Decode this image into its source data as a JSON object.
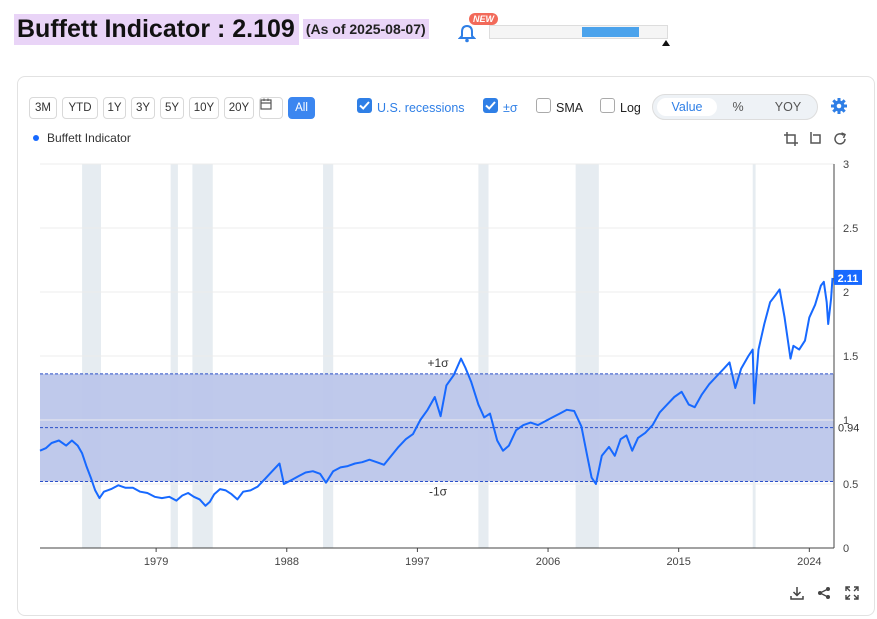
{
  "header": {
    "title": "Buffett Indicator : 2.109",
    "as_of": "(As of 2025-08-07)",
    "new_badge": "NEW",
    "progress_fraction": 0.32,
    "progress_offset_fraction": 0.52
  },
  "toolbar": {
    "ranges": [
      "3M",
      "YTD",
      "1Y",
      "3Y",
      "5Y",
      "10Y",
      "20Y"
    ],
    "all_label": "All",
    "recessions_label": "U.S. recessions",
    "sigma_label": "±σ",
    "sma_label": "SMA",
    "log_label": "Log",
    "view_options": [
      "Value",
      "%",
      "YOY"
    ]
  },
  "legend": {
    "label": "Buffett Indicator"
  },
  "colors": {
    "line": "#1769ff",
    "band": "#bcc6ea",
    "recession": "#e6ecf1",
    "accent": "#3b86f0"
  },
  "chart_data": {
    "type": "line",
    "title": "Buffett Indicator",
    "series": [
      {
        "name": "Buffett Indicator",
        "points": [
          [
            1971.0,
            0.76
          ],
          [
            1971.4,
            0.78
          ],
          [
            1971.8,
            0.82
          ],
          [
            1972.3,
            0.84
          ],
          [
            1972.8,
            0.8
          ],
          [
            1973.2,
            0.84
          ],
          [
            1973.6,
            0.8
          ],
          [
            1973.9,
            0.74
          ],
          [
            1974.2,
            0.64
          ],
          [
            1974.5,
            0.55
          ],
          [
            1974.8,
            0.45
          ],
          [
            1975.1,
            0.39
          ],
          [
            1975.4,
            0.44
          ],
          [
            1975.9,
            0.46
          ],
          [
            1976.4,
            0.49
          ],
          [
            1976.9,
            0.47
          ],
          [
            1977.4,
            0.47
          ],
          [
            1977.9,
            0.44
          ],
          [
            1978.4,
            0.43
          ],
          [
            1978.9,
            0.4
          ],
          [
            1979.4,
            0.39
          ],
          [
            1979.9,
            0.4
          ],
          [
            1980.4,
            0.37
          ],
          [
            1980.8,
            0.41
          ],
          [
            1981.2,
            0.43
          ],
          [
            1981.6,
            0.4
          ],
          [
            1982.0,
            0.38
          ],
          [
            1982.4,
            0.33
          ],
          [
            1982.7,
            0.36
          ],
          [
            1983.0,
            0.42
          ],
          [
            1983.4,
            0.46
          ],
          [
            1983.8,
            0.45
          ],
          [
            1984.2,
            0.42
          ],
          [
            1984.6,
            0.38
          ],
          [
            1985.0,
            0.44
          ],
          [
            1985.5,
            0.45
          ],
          [
            1986.0,
            0.48
          ],
          [
            1986.5,
            0.54
          ],
          [
            1987.0,
            0.6
          ],
          [
            1987.5,
            0.66
          ],
          [
            1987.8,
            0.5
          ],
          [
            1988.3,
            0.53
          ],
          [
            1988.8,
            0.56
          ],
          [
            1989.3,
            0.59
          ],
          [
            1989.8,
            0.6
          ],
          [
            1990.3,
            0.58
          ],
          [
            1990.7,
            0.51
          ],
          [
            1991.2,
            0.6
          ],
          [
            1991.7,
            0.63
          ],
          [
            1992.2,
            0.64
          ],
          [
            1992.7,
            0.66
          ],
          [
            1993.2,
            0.67
          ],
          [
            1993.7,
            0.69
          ],
          [
            1994.2,
            0.67
          ],
          [
            1994.7,
            0.65
          ],
          [
            1995.2,
            0.72
          ],
          [
            1995.7,
            0.79
          ],
          [
            1996.2,
            0.85
          ],
          [
            1996.7,
            0.89
          ],
          [
            1997.2,
            1.0
          ],
          [
            1997.7,
            1.08
          ],
          [
            1998.2,
            1.18
          ],
          [
            1998.6,
            1.03
          ],
          [
            1999.0,
            1.27
          ],
          [
            1999.5,
            1.35
          ],
          [
            2000.0,
            1.48
          ],
          [
            2000.3,
            1.41
          ],
          [
            2000.7,
            1.3
          ],
          [
            2001.2,
            1.12
          ],
          [
            2001.6,
            1.02
          ],
          [
            2002.0,
            1.05
          ],
          [
            2002.5,
            0.84
          ],
          [
            2002.9,
            0.76
          ],
          [
            2003.3,
            0.8
          ],
          [
            2003.8,
            0.92
          ],
          [
            2004.3,
            0.96
          ],
          [
            2004.8,
            0.98
          ],
          [
            2005.3,
            0.96
          ],
          [
            2005.8,
            0.99
          ],
          [
            2006.3,
            1.02
          ],
          [
            2006.8,
            1.05
          ],
          [
            2007.3,
            1.08
          ],
          [
            2007.8,
            1.07
          ],
          [
            2008.3,
            0.95
          ],
          [
            2008.7,
            0.72
          ],
          [
            2009.0,
            0.55
          ],
          [
            2009.3,
            0.5
          ],
          [
            2009.7,
            0.72
          ],
          [
            2010.2,
            0.79
          ],
          [
            2010.6,
            0.72
          ],
          [
            2011.0,
            0.85
          ],
          [
            2011.4,
            0.88
          ],
          [
            2011.8,
            0.76
          ],
          [
            2012.2,
            0.86
          ],
          [
            2012.7,
            0.9
          ],
          [
            2013.2,
            0.96
          ],
          [
            2013.7,
            1.06
          ],
          [
            2014.2,
            1.12
          ],
          [
            2014.7,
            1.18
          ],
          [
            2015.2,
            1.22
          ],
          [
            2015.7,
            1.12
          ],
          [
            2016.1,
            1.1
          ],
          [
            2016.6,
            1.2
          ],
          [
            2017.1,
            1.28
          ],
          [
            2017.6,
            1.34
          ],
          [
            2018.1,
            1.4
          ],
          [
            2018.5,
            1.45
          ],
          [
            2018.9,
            1.25
          ],
          [
            2019.3,
            1.4
          ],
          [
            2019.8,
            1.5
          ],
          [
            2020.1,
            1.55
          ],
          [
            2020.2,
            1.13
          ],
          [
            2020.5,
            1.55
          ],
          [
            2020.9,
            1.75
          ],
          [
            2021.3,
            1.92
          ],
          [
            2021.7,
            1.98
          ],
          [
            2021.95,
            2.02
          ],
          [
            2022.3,
            1.8
          ],
          [
            2022.7,
            1.48
          ],
          [
            2022.9,
            1.58
          ],
          [
            2023.3,
            1.55
          ],
          [
            2023.7,
            1.62
          ],
          [
            2024.0,
            1.8
          ],
          [
            2024.4,
            1.9
          ],
          [
            2024.8,
            2.05
          ],
          [
            2025.0,
            2.08
          ],
          [
            2025.2,
            1.92
          ],
          [
            2025.3,
            1.75
          ],
          [
            2025.5,
            1.95
          ],
          [
            2025.6,
            2.11
          ]
        ]
      }
    ],
    "recessions": [
      [
        1973.9,
        1975.2
      ],
      [
        1980.0,
        1980.5
      ],
      [
        1981.5,
        1982.9
      ],
      [
        1990.5,
        1991.2
      ],
      [
        2001.2,
        2001.9
      ],
      [
        2007.9,
        2009.5
      ],
      [
        2020.1,
        2020.3
      ]
    ],
    "sigma_band": {
      "upper": 1.36,
      "mean": 0.94,
      "lower": 0.52,
      "upper_label": "+1σ",
      "lower_label": "-1σ"
    },
    "mean_label": "0.94",
    "current_label": "2.11",
    "xlim": [
      1971.0,
      2025.7
    ],
    "ylim": [
      0,
      3
    ],
    "x_ticks": [
      1979,
      1988,
      1997,
      2006,
      2015,
      2024
    ],
    "y_ticks": [
      0,
      0.5,
      1,
      1.5,
      2,
      2.5,
      3
    ],
    "y_tick_labels": [
      "0",
      "0.5",
      "1",
      "1.5",
      "2",
      "2.5",
      "3"
    ]
  }
}
